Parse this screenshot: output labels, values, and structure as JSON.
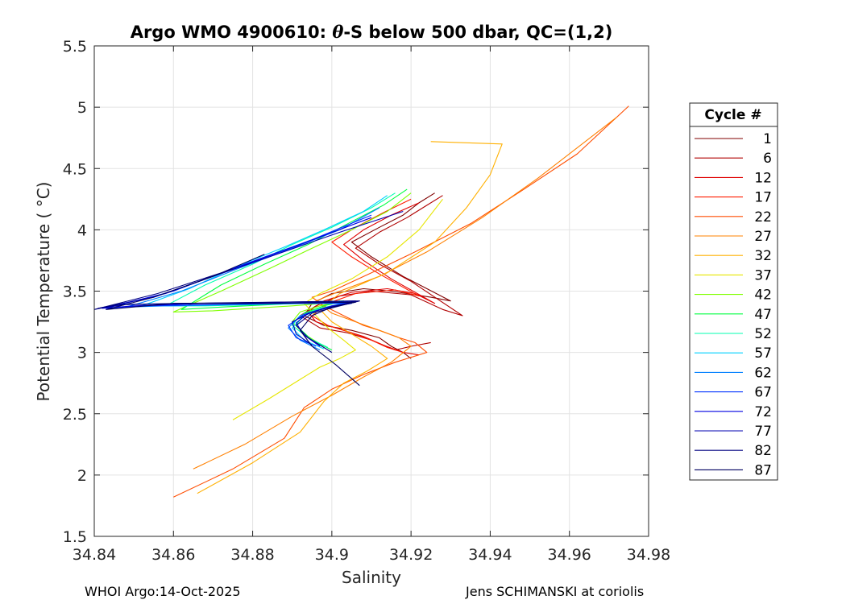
{
  "chart_data": {
    "type": "line",
    "title_pre": "Argo WMO 4900610: ",
    "title_theta": "θ",
    "title_post": "-S below 500 dbar,  QC=(1,2)",
    "xlabel": "Salinity",
    "ylabel": "Potential Temperature ( °C)",
    "xlim": [
      34.84,
      34.98
    ],
    "ylim": [
      1.5,
      5.5
    ],
    "xticks": [
      34.84,
      34.86,
      34.88,
      34.9,
      34.92,
      34.94,
      34.96,
      34.98
    ],
    "xtick_labels": [
      "34.84",
      "34.86",
      "34.88",
      "34.9",
      "34.92",
      "34.94",
      "34.96",
      "34.98"
    ],
    "yticks": [
      1.5,
      2,
      2.5,
      3,
      3.5,
      4,
      4.5,
      5,
      5.5
    ],
    "ytick_labels": [
      "1.5",
      "2",
      "2.5",
      "3",
      "3.5",
      "4",
      "4.5",
      "5",
      "5.5"
    ],
    "grid": true,
    "legend_title": "Cycle #",
    "legend_position": "right-outside",
    "series": [
      {
        "name": "1",
        "color": "#800000",
        "x": [
          34.92,
          34.918,
          34.915,
          34.912,
          34.905,
          34.898,
          34.893,
          34.895,
          34.9,
          34.908,
          34.915,
          34.925,
          34.93,
          34.918,
          34.91,
          34.905,
          34.912,
          34.918,
          34.922,
          34.926
        ],
        "y": [
          2.95,
          3.0,
          3.05,
          3.12,
          3.18,
          3.22,
          3.3,
          3.4,
          3.48,
          3.52,
          3.5,
          3.45,
          3.42,
          3.62,
          3.78,
          3.9,
          4.02,
          4.12,
          4.22,
          4.3
        ]
      },
      {
        "name": "6",
        "color": "#b00000",
        "x": [
          34.925,
          34.92,
          34.916,
          34.91,
          34.904,
          34.897,
          34.892,
          34.896,
          34.902,
          34.91,
          34.92,
          34.928,
          34.933,
          34.92,
          34.912,
          34.906,
          34.912,
          34.919,
          34.924,
          34.928
        ],
        "y": [
          3.08,
          3.05,
          3.02,
          3.1,
          3.16,
          3.2,
          3.3,
          3.38,
          3.46,
          3.5,
          3.47,
          3.35,
          3.3,
          3.58,
          3.72,
          3.85,
          3.98,
          4.1,
          4.2,
          4.28
        ]
      },
      {
        "name": "12",
        "color": "#df0000",
        "x": [
          34.922,
          34.918,
          34.913,
          34.908,
          34.902,
          34.896,
          34.894,
          34.898,
          34.905,
          34.914,
          34.921,
          34.926,
          34.915,
          34.908,
          34.903,
          34.908,
          34.915,
          34.922
        ],
        "y": [
          2.98,
          3.0,
          3.06,
          3.13,
          3.19,
          3.25,
          3.33,
          3.42,
          3.49,
          3.52,
          3.48,
          3.4,
          3.6,
          3.75,
          3.88,
          4.0,
          4.12,
          4.22
        ]
      },
      {
        "name": "17",
        "color": "#ff1c00",
        "x": [
          34.918,
          34.914,
          34.91,
          34.905,
          34.899,
          34.895,
          34.899,
          34.906,
          34.916,
          34.922,
          34.912,
          34.905,
          34.9,
          34.906,
          34.913,
          34.92
        ],
        "y": [
          3.0,
          3.04,
          3.1,
          3.16,
          3.22,
          3.3,
          3.4,
          3.48,
          3.51,
          3.46,
          3.64,
          3.78,
          3.9,
          4.02,
          4.14,
          4.25
        ]
      },
      {
        "name": "22",
        "color": "#ff4d00",
        "x": [
          34.86,
          34.875,
          34.888,
          34.893,
          34.9,
          34.908,
          34.916,
          34.924,
          34.921,
          34.917,
          34.912,
          34.908,
          34.903,
          34.898,
          34.895,
          34.9,
          34.91,
          34.921,
          34.935,
          34.948,
          34.962,
          34.975
        ],
        "y": [
          1.82,
          2.05,
          2.3,
          2.55,
          2.7,
          2.82,
          2.92,
          3.0,
          3.08,
          3.12,
          3.18,
          3.22,
          3.3,
          3.38,
          3.45,
          3.5,
          3.65,
          3.82,
          4.05,
          4.32,
          4.62,
          5.01
        ]
      },
      {
        "name": "27",
        "color": "#ff8000",
        "x": [
          34.865,
          34.878,
          34.89,
          34.9,
          34.908,
          34.915,
          34.92,
          34.917,
          34.912,
          34.906,
          34.9,
          34.896,
          34.902,
          34.912,
          34.924,
          34.938,
          34.952,
          34.972
        ],
        "y": [
          2.05,
          2.25,
          2.48,
          2.65,
          2.8,
          2.92,
          3.05,
          3.12,
          3.18,
          3.25,
          3.32,
          3.42,
          3.5,
          3.62,
          3.82,
          4.1,
          4.42,
          4.92
        ]
      },
      {
        "name": "32",
        "color": "#ffb000",
        "x": [
          34.866,
          34.88,
          34.892,
          34.898,
          34.903,
          34.909,
          34.914,
          34.91,
          34.905,
          34.9,
          34.897,
          34.902,
          34.914,
          34.926,
          34.934,
          34.94,
          34.943,
          34.925
        ],
        "y": [
          1.85,
          2.1,
          2.35,
          2.6,
          2.75,
          2.85,
          2.95,
          3.05,
          3.15,
          3.25,
          3.35,
          3.48,
          3.65,
          3.9,
          4.18,
          4.45,
          4.7,
          4.72
        ]
      },
      {
        "name": "37",
        "color": "#e6e600",
        "x": [
          34.875,
          34.884,
          34.892,
          34.897,
          34.902,
          34.906,
          34.903,
          34.899,
          34.896,
          34.893,
          34.897,
          34.905,
          34.914,
          34.922,
          34.928
        ],
        "y": [
          2.45,
          2.62,
          2.78,
          2.88,
          2.95,
          3.02,
          3.1,
          3.2,
          3.3,
          3.4,
          3.48,
          3.6,
          3.78,
          4.0,
          4.25
        ]
      },
      {
        "name": "42",
        "color": "#80ff00",
        "x": [
          34.898,
          34.893,
          34.89,
          34.892,
          34.897,
          34.902,
          34.898,
          34.89,
          34.88,
          34.87,
          34.86,
          34.872,
          34.884,
          34.895,
          34.905,
          34.914,
          34.92
        ],
        "y": [
          3.05,
          3.15,
          3.25,
          3.33,
          3.38,
          3.42,
          3.4,
          3.38,
          3.36,
          3.34,
          3.33,
          3.5,
          3.68,
          3.85,
          4.0,
          4.15,
          4.3
        ]
      },
      {
        "name": "47",
        "color": "#00ff40",
        "x": [
          34.9,
          34.895,
          34.891,
          34.893,
          34.898,
          34.903,
          34.896,
          34.885,
          34.872,
          34.862,
          34.872,
          34.883,
          34.894,
          34.904,
          34.913,
          34.919
        ],
        "y": [
          3.02,
          3.1,
          3.22,
          3.32,
          3.38,
          3.42,
          3.41,
          3.39,
          3.37,
          3.35,
          3.55,
          3.72,
          3.88,
          4.05,
          4.2,
          4.33
        ]
      },
      {
        "name": "52",
        "color": "#00ffb0",
        "x": [
          34.899,
          34.894,
          34.89,
          34.892,
          34.897,
          34.903,
          34.895,
          34.882,
          34.868,
          34.858,
          34.868,
          34.88,
          34.89,
          34.9,
          34.91,
          34.916
        ],
        "y": [
          3.04,
          3.12,
          3.22,
          3.3,
          3.36,
          3.4,
          3.4,
          3.39,
          3.38,
          3.38,
          3.55,
          3.72,
          3.88,
          4.02,
          4.18,
          4.3
        ]
      },
      {
        "name": "57",
        "color": "#00d0ff",
        "x": [
          34.898,
          34.893,
          34.89,
          34.893,
          34.898,
          34.904,
          34.894,
          34.878,
          34.862,
          34.852,
          34.864,
          34.876,
          34.888,
          34.898,
          34.908,
          34.914
        ],
        "y": [
          3.03,
          3.1,
          3.2,
          3.3,
          3.36,
          3.41,
          3.4,
          3.39,
          3.38,
          3.38,
          3.52,
          3.7,
          3.86,
          4.0,
          4.15,
          4.28
        ]
      },
      {
        "name": "62",
        "color": "#0080ff",
        "x": [
          34.897,
          34.892,
          34.889,
          34.892,
          34.898,
          34.904,
          34.892,
          34.875,
          34.858,
          34.848,
          34.862,
          34.876,
          34.89,
          34.902,
          34.912
        ],
        "y": [
          3.02,
          3.1,
          3.2,
          3.3,
          3.36,
          3.4,
          3.4,
          3.39,
          3.38,
          3.37,
          3.5,
          3.68,
          3.85,
          4.0,
          4.18
        ]
      },
      {
        "name": "67",
        "color": "#0030ff",
        "x": [
          34.896,
          34.891,
          34.889,
          34.893,
          34.899,
          34.905,
          34.89,
          34.87,
          34.852,
          34.843,
          34.86,
          34.878,
          34.895,
          34.91
        ],
        "y": [
          3.05,
          3.12,
          3.22,
          3.31,
          3.37,
          3.4,
          3.4,
          3.39,
          3.38,
          3.36,
          3.5,
          3.72,
          3.92,
          4.12
        ]
      },
      {
        "name": "72",
        "color": "#0000e0",
        "x": [
          34.897,
          34.893,
          34.891,
          34.894,
          34.9,
          34.906,
          34.89,
          34.868,
          34.85,
          34.842,
          34.858,
          34.875,
          34.892,
          34.91
        ],
        "y": [
          3.05,
          3.14,
          3.24,
          3.32,
          3.38,
          3.41,
          3.41,
          3.4,
          3.38,
          3.36,
          3.48,
          3.68,
          3.88,
          4.1
        ]
      },
      {
        "name": "77",
        "color": "#0000b0",
        "x": [
          34.895,
          34.891,
          34.89,
          34.895,
          34.901,
          34.906,
          34.888,
          34.866,
          34.848,
          34.841,
          34.855,
          34.87,
          34.886,
          34.902,
          34.918
        ],
        "y": [
          3.06,
          3.15,
          3.25,
          3.33,
          3.38,
          3.42,
          3.41,
          3.4,
          3.39,
          3.36,
          3.45,
          3.62,
          3.8,
          3.98,
          4.15
        ]
      },
      {
        "name": "82",
        "color": "#000080",
        "x": [
          34.9,
          34.894,
          34.891,
          34.895,
          34.902,
          34.907,
          34.886,
          34.862,
          34.846,
          34.84,
          34.856,
          34.875
        ],
        "y": [
          3.0,
          3.12,
          3.22,
          3.32,
          3.38,
          3.42,
          3.41,
          3.4,
          3.39,
          3.35,
          3.48,
          3.68
        ]
      },
      {
        "name": "87",
        "color": "#000060",
        "x": [
          34.907,
          34.901,
          34.895,
          34.892,
          34.895,
          34.9,
          34.906,
          34.884,
          34.86,
          34.843,
          34.855,
          34.87,
          34.883
        ],
        "y": [
          2.73,
          2.9,
          3.05,
          3.18,
          3.3,
          3.37,
          3.41,
          3.4,
          3.4,
          3.35,
          3.45,
          3.62,
          3.8
        ]
      }
    ]
  },
  "footer": {
    "left": "WHOI Argo:14-Oct-2025",
    "right": "Jens SCHIMANSKI at coriolis"
  }
}
